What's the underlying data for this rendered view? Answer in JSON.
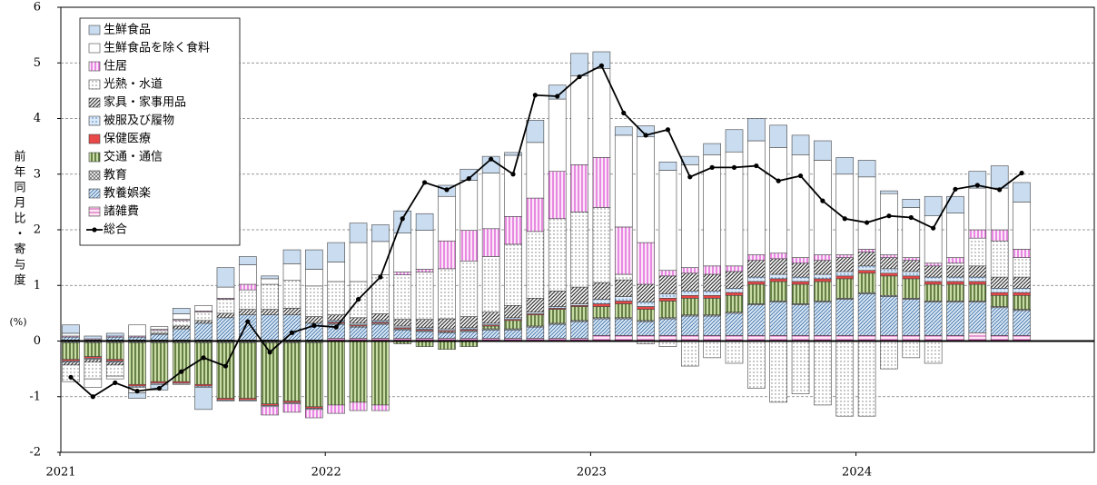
{
  "chart_data": {
    "type": "bar",
    "ylabel": "前年同月比・寄与度",
    "yunit": "(%)",
    "categories": [
      "2021",
      null,
      null,
      null,
      null,
      null,
      null,
      null,
      null,
      null,
      null,
      null,
      "2022",
      null,
      null,
      null,
      null,
      null,
      null,
      null,
      null,
      null,
      null,
      null,
      "2023",
      null,
      null,
      null,
      null,
      null,
      null,
      null,
      null,
      null,
      null,
      null,
      "2024",
      null,
      null,
      null,
      null,
      null,
      null,
      null
    ],
    "ylim": [
      -2,
      6
    ],
    "yticks": [
      -2,
      -1,
      0,
      1,
      2,
      3,
      4,
      5,
      6
    ],
    "grid": true,
    "series": [
      {
        "name": "生鮮食品",
        "type": "bar",
        "color": "#c9dcf0",
        "pattern": "solid",
        "values": [
          0.15,
          0.05,
          0.05,
          -0.1,
          -0.1,
          0.1,
          -0.4,
          0.35,
          0.15,
          0.05,
          0.25,
          0.35,
          0.35,
          0.35,
          0.3,
          0.4,
          0.3,
          0.2,
          0.2,
          0.3,
          0.05,
          0.4,
          0.25,
          0.4,
          0.3,
          0.15,
          0.2,
          0.15,
          0.15,
          0.2,
          0.4,
          0.4,
          0.4,
          0.35,
          0.35,
          0.3,
          0.3,
          0.05,
          0.15,
          0.35,
          0.3,
          0.3,
          0.4,
          0.35
        ]
      },
      {
        "name": "生鮮食品を除く食料",
        "type": "bar",
        "color": "#ffffff",
        "pattern": "solid",
        "values": [
          0.05,
          -0.15,
          -0.05,
          0.2,
          0.05,
          0.1,
          0.1,
          0.2,
          0.35,
          0.1,
          0.3,
          0.3,
          0.35,
          0.7,
          0.6,
          0.7,
          0.7,
          0.8,
          0.9,
          1.0,
          1.1,
          1.0,
          1.3,
          1.6,
          1.6,
          1.65,
          1.9,
          1.8,
          1.85,
          2.0,
          2.05,
          2.05,
          1.9,
          1.85,
          1.7,
          1.45,
          1.3,
          1.1,
          0.9,
          0.85,
          0.8,
          0.75,
          0.75,
          0.85
        ]
      },
      {
        "name": "住居",
        "type": "bar",
        "color": "#e060d8",
        "pattern": "vertical",
        "values": [
          0.02,
          0.02,
          0.02,
          0.02,
          0.02,
          0.02,
          0.02,
          0.02,
          0.1,
          -0.15,
          -0.15,
          -0.15,
          -0.15,
          -0.15,
          -0.1,
          0.05,
          0.05,
          0.5,
          0.55,
          0.5,
          0.5,
          0.6,
          0.85,
          0.85,
          0.9,
          0.85,
          0.75,
          0.1,
          0.1,
          0.15,
          0.1,
          0.1,
          0.1,
          0.1,
          0.1,
          0.05,
          0.05,
          0.05,
          0.05,
          0.05,
          0.1,
          0.15,
          0.2,
          0.15
        ]
      },
      {
        "name": "光熱・水道",
        "type": "bar",
        "color": "#7a7a7a",
        "pattern": "dots",
        "values": [
          -0.3,
          -0.3,
          -0.2,
          -0.1,
          0.05,
          0.1,
          0.15,
          0.25,
          0.35,
          0.45,
          0.5,
          0.55,
          0.6,
          0.65,
          0.7,
          0.8,
          0.85,
          0.9,
          1.0,
          1.0,
          1.1,
          1.2,
          1.3,
          1.35,
          1.35,
          0.1,
          -0.05,
          -0.1,
          -0.45,
          -0.3,
          -0.4,
          -0.85,
          -1.1,
          -0.95,
          -1.15,
          -1.35,
          -1.35,
          -0.5,
          -0.3,
          -0.4,
          0.05,
          0.5,
          0.65,
          0.35
        ]
      },
      {
        "name": "家具・家事用品",
        "type": "bar",
        "color": "#333333",
        "pattern": "diagonal",
        "values": [
          -0.05,
          -0.05,
          -0.05,
          0.0,
          0.02,
          0.05,
          0.05,
          0.08,
          0.1,
          0.1,
          0.12,
          0.12,
          0.1,
          0.1,
          0.12,
          0.12,
          0.15,
          0.18,
          0.2,
          0.2,
          0.22,
          0.25,
          0.28,
          0.3,
          0.3,
          0.3,
          0.32,
          0.32,
          0.32,
          0.3,
          0.3,
          0.3,
          0.28,
          0.25,
          0.25,
          0.25,
          0.25,
          0.2,
          0.2,
          0.2,
          0.2,
          0.2,
          0.2,
          0.2
        ]
      },
      {
        "name": "被服及び履物",
        "type": "bar",
        "color": "#2f6fc0",
        "pattern": "bluedots",
        "values": [
          -0.02,
          -0.02,
          -0.02,
          -0.02,
          -0.02,
          -0.02,
          -0.02,
          -0.02,
          -0.02,
          -0.02,
          -0.02,
          -0.02,
          0.03,
          0.03,
          0.03,
          0.03,
          0.03,
          0.03,
          0.03,
          0.03,
          0.03,
          0.03,
          0.03,
          0.03,
          0.08,
          0.08,
          0.08,
          0.08,
          0.08,
          0.08,
          0.08,
          0.08,
          0.08,
          0.08,
          0.08,
          0.08,
          0.08,
          0.08,
          0.08,
          0.08,
          0.08,
          0.08,
          0.08,
          0.08
        ]
      },
      {
        "name": "保健医療",
        "type": "bar",
        "color": "#e84848",
        "pattern": "solid",
        "values": [
          -0.03,
          -0.03,
          -0.03,
          -0.03,
          -0.03,
          -0.03,
          -0.03,
          -0.03,
          -0.03,
          -0.03,
          -0.03,
          -0.03,
          0.02,
          0.02,
          0.02,
          0.02,
          0.02,
          0.02,
          0.02,
          0.02,
          0.02,
          0.02,
          0.02,
          0.02,
          0.05,
          0.05,
          0.05,
          0.05,
          0.05,
          0.05,
          0.05,
          0.05,
          0.05,
          0.05,
          0.05,
          0.05,
          0.05,
          0.05,
          0.05,
          0.05,
          0.05,
          0.05,
          0.05,
          0.05
        ]
      },
      {
        "name": "交通・通信",
        "type": "bar",
        "color": "#3c5a1e",
        "pattern": "green",
        "values": [
          -0.3,
          -0.25,
          -0.3,
          -0.75,
          -0.7,
          -0.7,
          -0.75,
          -1.0,
          -1.0,
          -1.1,
          -1.05,
          -1.15,
          -1.15,
          -1.1,
          -1.15,
          -0.05,
          -0.1,
          -0.15,
          -0.1,
          0.05,
          0.15,
          0.2,
          0.25,
          0.25,
          0.2,
          0.25,
          0.2,
          0.3,
          0.3,
          0.3,
          0.3,
          0.35,
          0.35,
          0.35,
          0.35,
          0.35,
          0.35,
          0.35,
          0.35,
          0.3,
          0.3,
          0.3,
          0.2,
          0.25
        ]
      },
      {
        "name": "教育",
        "type": "bar",
        "color": "#666666",
        "pattern": "cross",
        "values": [
          -0.03,
          -0.03,
          -0.03,
          -0.03,
          -0.03,
          -0.03,
          -0.03,
          -0.03,
          -0.03,
          -0.03,
          -0.03,
          -0.03,
          0.02,
          0.02,
          0.02,
          0.02,
          0.02,
          0.02,
          0.02,
          0.02,
          0.02,
          0.02,
          0.02,
          0.02,
          0.02,
          0.02,
          0.02,
          0.02,
          0.02,
          0.02,
          0.02,
          0.02,
          0.02,
          0.02,
          0.02,
          0.02,
          0.02,
          0.02,
          0.02,
          0.02,
          0.02,
          0.02,
          0.02,
          0.02
        ]
      },
      {
        "name": "教養娯楽",
        "type": "bar",
        "color": "#3a6ea5",
        "pattern": "bluediag",
        "values": [
          0.05,
          0.0,
          0.05,
          0.05,
          0.1,
          0.2,
          0.3,
          0.4,
          0.45,
          0.45,
          0.45,
          0.3,
          0.25,
          0.2,
          0.25,
          0.15,
          0.12,
          0.1,
          0.12,
          0.15,
          0.15,
          0.2,
          0.25,
          0.3,
          0.3,
          0.3,
          0.25,
          0.3,
          0.35,
          0.35,
          0.4,
          0.55,
          0.6,
          0.55,
          0.6,
          0.65,
          0.75,
          0.7,
          0.65,
          0.6,
          0.6,
          0.55,
          0.5,
          0.45
        ]
      },
      {
        "name": "諸雑費",
        "type": "bar",
        "color": "#d050b0",
        "pattern": "horizontal",
        "values": [
          0.02,
          0.02,
          0.02,
          0.02,
          0.02,
          0.02,
          0.02,
          0.02,
          0.02,
          0.02,
          0.02,
          0.02,
          0.05,
          0.05,
          0.05,
          0.05,
          0.05,
          0.05,
          0.05,
          0.05,
          0.05,
          0.05,
          0.05,
          0.05,
          0.1,
          0.1,
          0.1,
          0.1,
          0.1,
          0.1,
          0.1,
          0.1,
          0.1,
          0.1,
          0.1,
          0.1,
          0.1,
          0.1,
          0.1,
          0.1,
          0.1,
          0.15,
          0.1,
          0.1
        ]
      },
      {
        "name": "総合",
        "type": "line",
        "color": "#000000",
        "values": [
          -0.65,
          -1.0,
          -0.75,
          -0.9,
          -0.85,
          -0.55,
          -0.3,
          -0.45,
          0.35,
          -0.2,
          0.15,
          0.28,
          0.25,
          0.75,
          1.15,
          2.2,
          2.85,
          2.72,
          2.92,
          3.27,
          3.0,
          4.42,
          4.4,
          4.75,
          4.95,
          4.1,
          3.7,
          3.8,
          2.95,
          3.12,
          3.12,
          3.15,
          2.88,
          2.97,
          2.52,
          2.2,
          2.13,
          2.25,
          2.22,
          2.03,
          2.73,
          2.8,
          2.72,
          3.02
        ]
      }
    ]
  }
}
